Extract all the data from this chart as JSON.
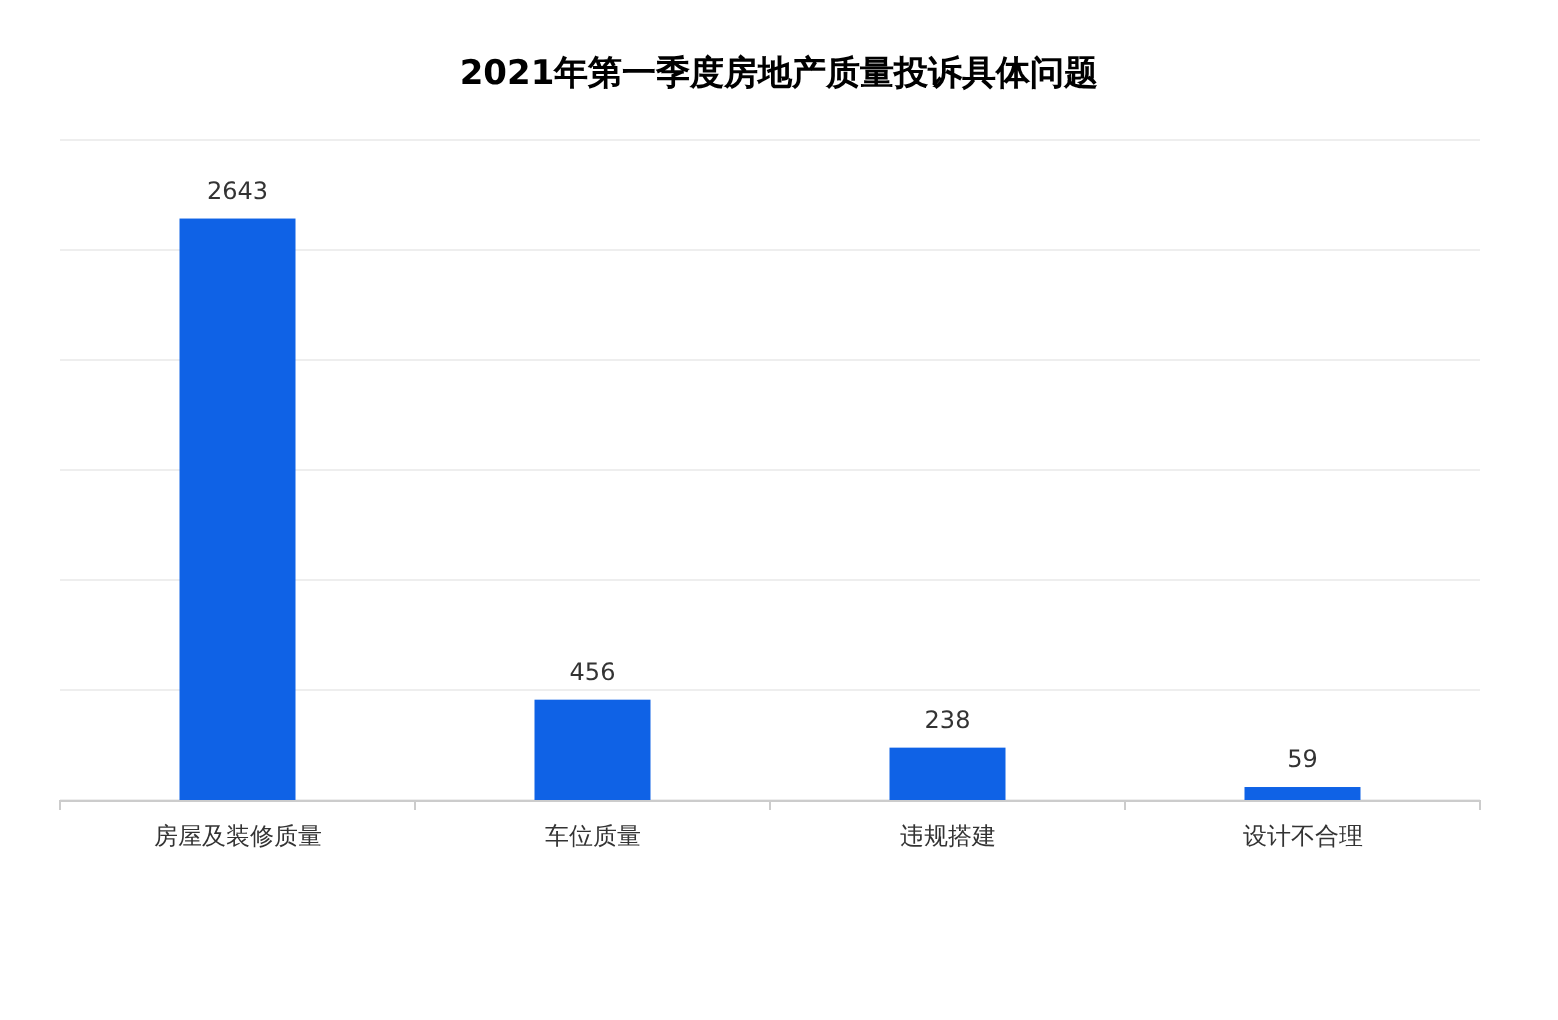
{
  "chart_data": {
    "type": "bar",
    "title": "2021年第一季度房地产质量投诉具体问题",
    "categories": [
      "房屋及装修质量",
      "车位质量",
      "违规搭建",
      "设计不合理"
    ],
    "values": [
      2643,
      456,
      238,
      59
    ],
    "color": "#0f62e6",
    "data_labels": true,
    "grid": "y",
    "tick_labels": "x",
    "ylim": [
      0,
      3000
    ],
    "yticks": [
      {
        "value": 0,
        "label": null
      },
      {
        "value": 500,
        "label": null
      },
      {
        "value": 1000,
        "label": null
      },
      {
        "value": 1500,
        "label": null
      },
      {
        "value": 2000,
        "label": null
      },
      {
        "value": 2500,
        "label": null
      },
      {
        "value": 3000,
        "label": null
      }
    ]
  }
}
